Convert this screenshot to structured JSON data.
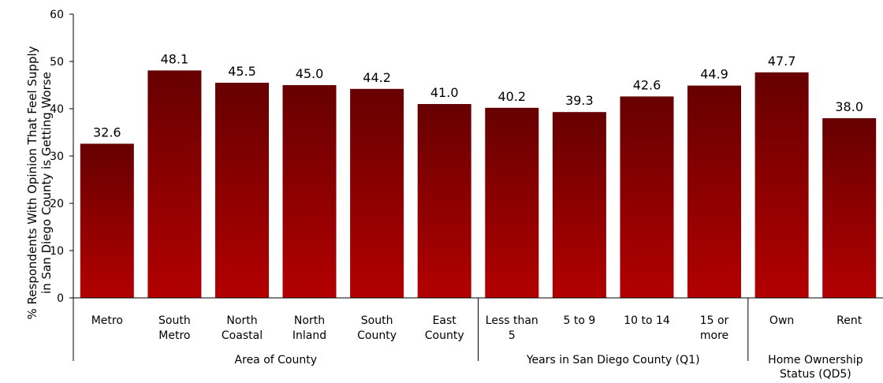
{
  "chart_data": {
    "type": "bar",
    "title": "",
    "ylabel": [
      "% Respondents With Opinion That Feel Supply",
      "in San Diego County is Getting Worse"
    ],
    "xlabel": "",
    "ylim": [
      0,
      60
    ],
    "yticks": [
      0,
      10,
      20,
      30,
      40,
      50,
      60
    ],
    "grid": false,
    "legend": "none",
    "categories": [
      [
        "Metro"
      ],
      [
        "South",
        "Metro"
      ],
      [
        "North",
        "Coastal"
      ],
      [
        "North",
        "Inland"
      ],
      [
        "South",
        "County"
      ],
      [
        "East",
        "County"
      ],
      [
        "Less than",
        "5"
      ],
      [
        "5 to 9"
      ],
      [
        "10 to 14"
      ],
      [
        "15 or",
        "more"
      ],
      [
        "Own"
      ],
      [
        "Rent"
      ]
    ],
    "values": [
      32.6,
      48.1,
      45.5,
      45.0,
      44.2,
      41.0,
      40.2,
      39.3,
      42.6,
      44.9,
      47.7,
      38.0
    ],
    "value_labels": [
      "32.6",
      "48.1",
      "45.5",
      "45.0",
      "44.2",
      "41.0",
      "40.2",
      "39.3",
      "42.6",
      "44.9",
      "47.7",
      "38.0"
    ],
    "groups": [
      {
        "label": [
          "Area of County"
        ],
        "start": 0,
        "end": 5
      },
      {
        "label": [
          "Years in San Diego County (Q1)"
        ],
        "start": 6,
        "end": 9
      },
      {
        "label": [
          "Home Ownership",
          "Status (QD5)"
        ],
        "start": 10,
        "end": 11
      }
    ],
    "colors": {
      "bar_top": "#660000",
      "bar_bottom": "#B30000",
      "axis": "#000000"
    }
  }
}
